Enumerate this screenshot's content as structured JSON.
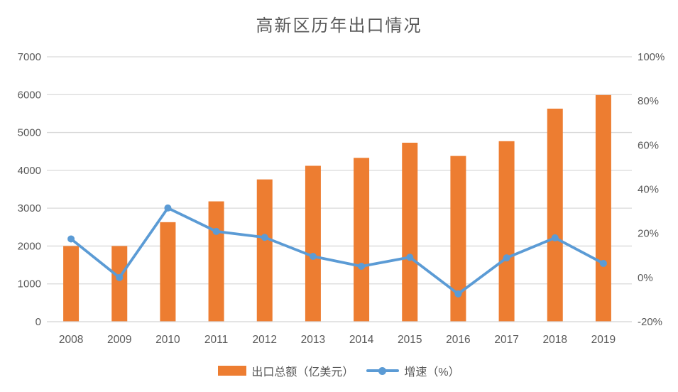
{
  "title": "高新区历年出口情况",
  "colors": {
    "bar": "#ED7D31",
    "line": "#5B9BD5",
    "title_text": "#595959",
    "axis_text": "#595959",
    "gridline": "#D9D9D9",
    "background": "#FFFFFF"
  },
  "legend": {
    "items": [
      {
        "label": "出口总额（亿美元）",
        "series": "bar"
      },
      {
        "label": "增速（%）",
        "series": "line"
      }
    ]
  },
  "chart_data": {
    "type": "bar+line",
    "title": "高新区历年出口情况",
    "categories": [
      "2008",
      "2009",
      "2010",
      "2011",
      "2012",
      "2013",
      "2014",
      "2015",
      "2016",
      "2017",
      "2018",
      "2019"
    ],
    "series": [
      {
        "name": "出口总额（亿美元）",
        "type": "bar",
        "axis": "left",
        "values": [
          2000,
          2000,
          2630,
          3180,
          3760,
          4120,
          4330,
          4730,
          4380,
          4770,
          5630,
          5990
        ]
      },
      {
        "name": "增速（%）",
        "type": "line",
        "axis": "right",
        "values": [
          17.5,
          0,
          31.5,
          20.9,
          18.2,
          9.6,
          5.1,
          9.2,
          -7.4,
          8.9,
          18.0,
          6.4
        ]
      }
    ],
    "left_axis": {
      "min": 0,
      "max": 7000,
      "step": 1000,
      "tick_labels": [
        "0",
        "1000",
        "2000",
        "3000",
        "4000",
        "5000",
        "6000",
        "7000"
      ]
    },
    "right_axis": {
      "min": -20,
      "max": 100,
      "step": 20,
      "tick_labels": [
        "-20%",
        "0%",
        "20%",
        "40%",
        "60%",
        "80%",
        "100%"
      ]
    },
    "grid": "horizontal-only",
    "legend_position": "bottom"
  }
}
